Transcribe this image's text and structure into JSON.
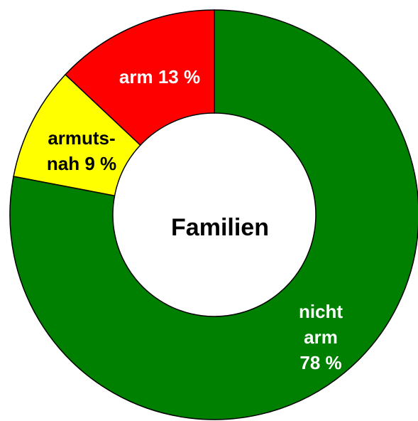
{
  "chart_data": {
    "type": "donut",
    "center_label": "Familien",
    "values": [
      78,
      9,
      13
    ],
    "colors": [
      "#008000",
      "#ffff00",
      "#ff0000"
    ],
    "labels": [
      [
        "nicht",
        "arm",
        "78 %"
      ],
      [
        "armuts-",
        "nah 9 %"
      ],
      [
        "arm 13 %"
      ]
    ],
    "label_colors": [
      "#ffffff",
      "#000000",
      "#ffffff"
    ]
  }
}
